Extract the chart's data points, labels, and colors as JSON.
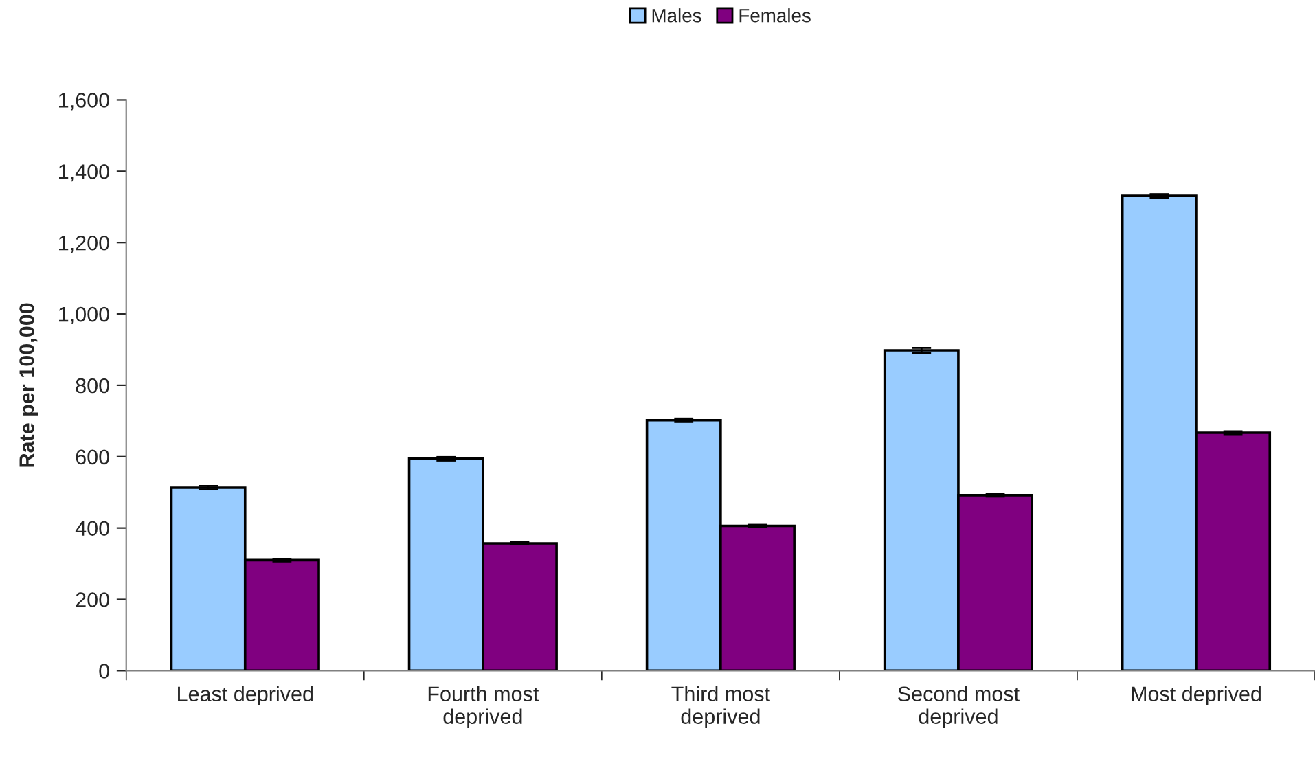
{
  "chart_data": {
    "type": "bar",
    "ylabel": "Rate per 100,000",
    "categories": [
      "Least deprived",
      "Fourth most deprived",
      "Third most deprived",
      "Second most deprived",
      "Most deprived"
    ],
    "series": [
      {
        "name": "Males",
        "color": "#99ccff",
        "values": [
          513,
          594,
          702,
          898,
          1331
        ],
        "errors": [
          5,
          5,
          5,
          7,
          5
        ]
      },
      {
        "name": "Females",
        "color": "#800080",
        "values": [
          310,
          357,
          406,
          492,
          667
        ],
        "errors": [
          4,
          3,
          3,
          4,
          4
        ]
      }
    ],
    "ylim": [
      0,
      1600
    ],
    "yticks": [
      {
        "value": 0,
        "label": "0"
      },
      {
        "value": 200,
        "label": "200"
      },
      {
        "value": 400,
        "label": "400"
      },
      {
        "value": 600,
        "label": "600"
      },
      {
        "value": 800,
        "label": "800"
      },
      {
        "value": 1000,
        "label": "1,000"
      },
      {
        "value": 1200,
        "label": "1,200"
      },
      {
        "value": 1400,
        "label": "1,400"
      },
      {
        "value": 1600,
        "label": "1,600"
      }
    ],
    "grid": false,
    "legend": "top"
  }
}
